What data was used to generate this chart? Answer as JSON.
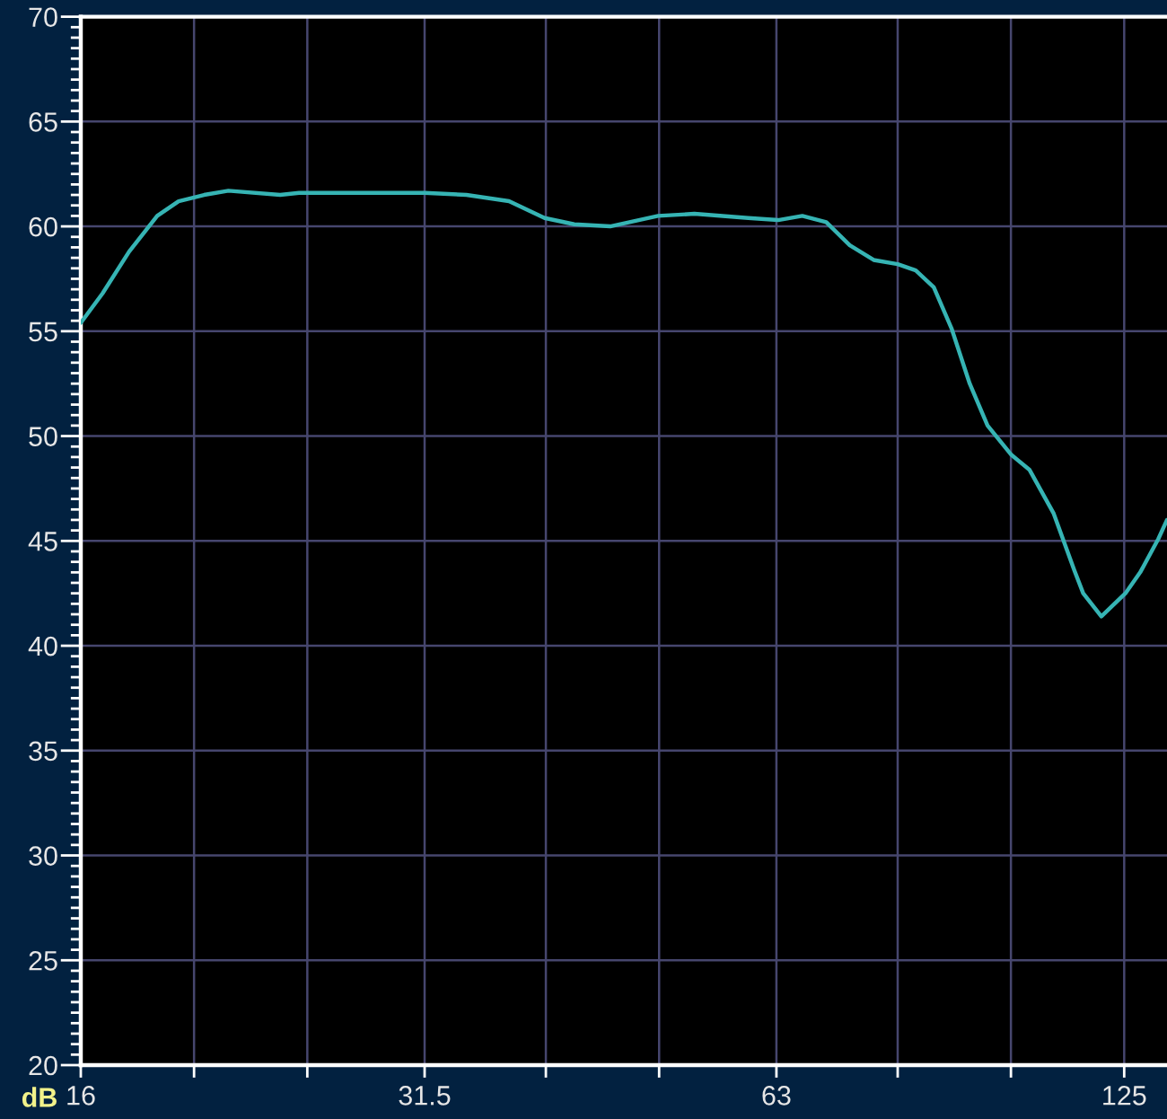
{
  "chart_data": {
    "type": "line",
    "ylabel": "dB",
    "x": [
      16,
      16.7,
      17.6,
      18.6,
      19.4,
      20.4,
      21.4,
      23.7,
      24.6,
      28.7,
      31.5,
      34.2,
      37.2,
      39.9,
      42.3,
      45.4,
      49.9,
      53.6,
      59.6,
      63.2,
      66.3,
      69.5,
      72.8,
      76.3,
      80,
      82.9,
      85.9,
      89,
      92.2,
      95.5,
      100.1,
      103.7,
      108.8,
      113.3,
      115.3,
      119.5,
      125.3,
      129,
      133.7,
      136
    ],
    "series": [
      {
        "color": "#36b4b4",
        "values": [
          55.4,
          56.8,
          58.8,
          60.5,
          61.2,
          61.5,
          61.7,
          61.5,
          61.6,
          61.6,
          61.6,
          61.5,
          61.2,
          60.4,
          60.1,
          60.0,
          60.5,
          60.6,
          60.4,
          60.3,
          60.5,
          60.2,
          59.1,
          58.4,
          58.2,
          57.9,
          57.1,
          55.1,
          52.5,
          50.5,
          49.1,
          48.4,
          46.3,
          43.6,
          42.5,
          41.4,
          42.5,
          43.5,
          45.1,
          46.0
        ]
      }
    ],
    "xlim": [
      16,
      136
    ],
    "ylim": [
      20,
      70
    ],
    "xticks": [
      16,
      {
        "value": 20,
        "label": null
      },
      {
        "value": 25,
        "label": null
      },
      31.5,
      {
        "value": 40,
        "label": null
      },
      {
        "value": 50,
        "label": null
      },
      63,
      {
        "value": 80,
        "label": null
      },
      {
        "value": 100,
        "label": null
      },
      125
    ],
    "yticks": [
      20,
      25,
      30,
      35,
      40,
      45,
      50,
      55,
      60,
      65,
      70
    ],
    "log": "x",
    "grid": true,
    "marker": "none",
    "line_style": "solid"
  }
}
